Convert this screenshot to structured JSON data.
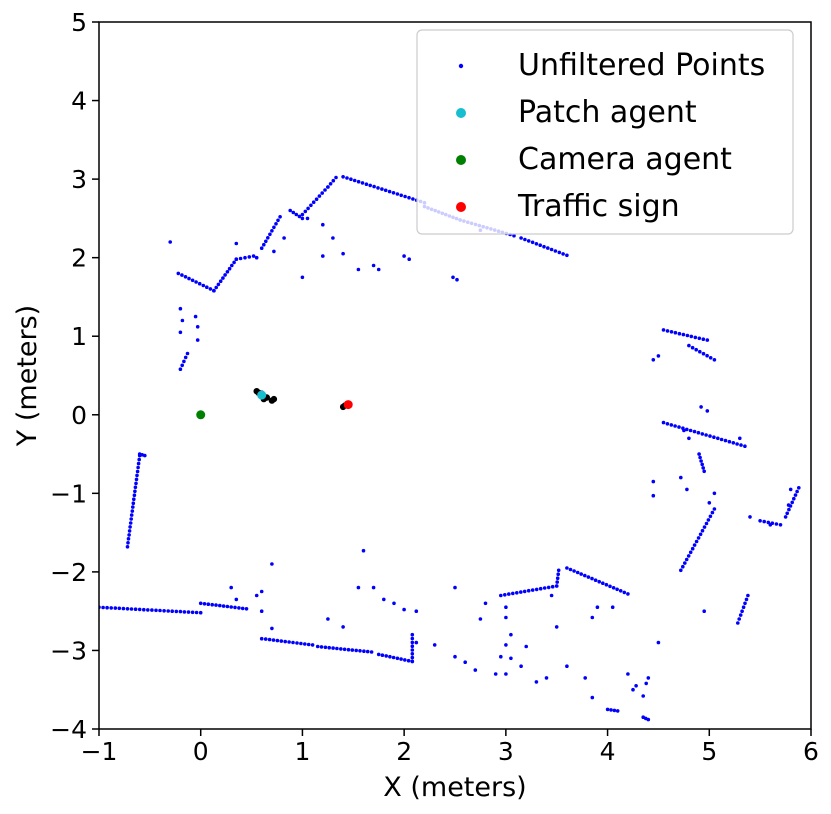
{
  "chart_data": {
    "type": "scatter",
    "xlabel": "X (meters)",
    "ylabel": "Y (meters)",
    "xlim": [
      -1,
      6
    ],
    "ylim": [
      -4,
      5
    ],
    "xticks": [
      -1,
      0,
      1,
      2,
      3,
      4,
      5,
      6
    ],
    "yticks": [
      -4,
      -3,
      -2,
      -1,
      0,
      1,
      2,
      3,
      4,
      5
    ],
    "xtick_labels": [
      "−1",
      "0",
      "1",
      "2",
      "3",
      "4",
      "5",
      "6"
    ],
    "ytick_labels": [
      "−4",
      "−3",
      "−2",
      "−1",
      "0",
      "1",
      "2",
      "3",
      "4",
      "5"
    ],
    "grid": false,
    "legend_position": "top-right",
    "series": [
      {
        "name": "Unfiltered Points",
        "color": "#0000ff",
        "marker_size": "small",
        "segments": [
          [
            [
              -1.0,
              -2.45
            ],
            [
              0.0,
              -2.52
            ]
          ],
          [
            [
              -0.72,
              -1.68
            ],
            [
              -0.6,
              -0.52
            ]
          ],
          [
            [
              -0.55,
              -0.52
            ],
            [
              -0.6,
              -0.5
            ]
          ],
          [
            [
              -0.2,
              0.58
            ],
            [
              -0.13,
              0.78
            ]
          ],
          [
            [
              -0.22,
              1.8
            ],
            [
              0.13,
              1.58
            ]
          ],
          [
            [
              0.13,
              1.58
            ],
            [
              0.35,
              1.98
            ]
          ],
          [
            [
              0.35,
              1.98
            ],
            [
              0.52,
              2.02
            ]
          ],
          [
            [
              0.6,
              2.12
            ],
            [
              0.78,
              2.52
            ]
          ],
          [
            [
              0.88,
              2.6
            ],
            [
              1.0,
              2.5
            ]
          ],
          [
            [
              1.0,
              2.55
            ],
            [
              1.25,
              2.9
            ]
          ],
          [
            [
              1.25,
              2.9
            ],
            [
              1.33,
              3.02
            ]
          ],
          [
            [
              1.4,
              3.03
            ],
            [
              2.2,
              2.7
            ]
          ],
          [
            [
              2.2,
              2.65
            ],
            [
              2.55,
              2.48
            ]
          ],
          [
            [
              2.55,
              2.48
            ],
            [
              3.08,
              2.28
            ]
          ],
          [
            [
              3.15,
              2.25
            ],
            [
              3.6,
              2.03
            ]
          ],
          [
            [
              0.0,
              -2.4
            ],
            [
              0.45,
              -2.47
            ]
          ],
          [
            [
              0.6,
              -2.85
            ],
            [
              1.1,
              -2.93
            ]
          ],
          [
            [
              1.15,
              -2.95
            ],
            [
              1.68,
              -3.02
            ]
          ],
          [
            [
              1.75,
              -3.05
            ],
            [
              2.08,
              -3.14
            ]
          ],
          [
            [
              2.08,
              -3.14
            ],
            [
              2.08,
              -2.8
            ]
          ],
          [
            [
              2.95,
              -2.3
            ],
            [
              3.5,
              -2.18
            ]
          ],
          [
            [
              3.5,
              -2.18
            ],
            [
              3.52,
              -1.98
            ]
          ],
          [
            [
              3.6,
              -1.95
            ],
            [
              4.2,
              -2.28
            ]
          ],
          [
            [
              4.55,
              1.08
            ],
            [
              4.98,
              0.95
            ]
          ],
          [
            [
              4.8,
              0.88
            ],
            [
              5.05,
              0.7
            ]
          ],
          [
            [
              4.55,
              -0.1
            ],
            [
              5.35,
              -0.4
            ]
          ],
          [
            [
              4.72,
              -1.98
            ],
            [
              5.05,
              -1.2
            ]
          ],
          [
            [
              4.9,
              -0.5
            ],
            [
              4.95,
              -0.72
            ]
          ],
          [
            [
              5.28,
              -2.65
            ],
            [
              5.38,
              -2.3
            ]
          ],
          [
            [
              5.75,
              -1.3
            ],
            [
              5.88,
              -0.93
            ]
          ],
          [
            [
              5.5,
              -1.35
            ],
            [
              5.7,
              -1.4
            ]
          ],
          [
            [
              4.35,
              -3.85
            ],
            [
              4.4,
              -3.88
            ]
          ],
          [
            [
              4.0,
              -3.75
            ],
            [
              4.1,
              -3.77
            ]
          ]
        ],
        "points": [
          [
            -0.3,
            2.2
          ],
          [
            -0.2,
            1.35
          ],
          [
            -0.18,
            1.2
          ],
          [
            -0.2,
            1.05
          ],
          [
            -0.05,
            1.25
          ],
          [
            -0.03,
            1.12
          ],
          [
            -0.03,
            0.95
          ],
          [
            0.35,
            2.18
          ],
          [
            0.55,
            2.0
          ],
          [
            0.72,
            2.08
          ],
          [
            0.82,
            2.25
          ],
          [
            1.05,
            2.5
          ],
          [
            1.2,
            2.42
          ],
          [
            1.3,
            2.25
          ],
          [
            1.2,
            2.02
          ],
          [
            1.0,
            1.75
          ],
          [
            1.4,
            2.05
          ],
          [
            1.55,
            1.85
          ],
          [
            1.7,
            1.9
          ],
          [
            1.75,
            1.85
          ],
          [
            2.0,
            2.02
          ],
          [
            2.05,
            1.98
          ],
          [
            2.48,
            1.75
          ],
          [
            2.52,
            1.72
          ],
          [
            2.75,
            2.35
          ],
          [
            0.6,
            -2.5
          ],
          [
            0.55,
            -2.3
          ],
          [
            0.6,
            -2.25
          ],
          [
            0.7,
            -1.9
          ],
          [
            0.7,
            -2.72
          ],
          [
            0.3,
            -2.2
          ],
          [
            0.35,
            -2.35
          ],
          [
            1.25,
            -2.6
          ],
          [
            1.4,
            -2.7
          ],
          [
            1.6,
            -1.73
          ],
          [
            1.55,
            -2.2
          ],
          [
            1.7,
            -2.2
          ],
          [
            1.8,
            -2.35
          ],
          [
            1.9,
            -2.4
          ],
          [
            2.0,
            -2.48
          ],
          [
            2.12,
            -2.5
          ],
          [
            2.12,
            -2.9
          ],
          [
            2.3,
            -2.93
          ],
          [
            2.5,
            -2.2
          ],
          [
            2.5,
            -3.08
          ],
          [
            2.6,
            -3.15
          ],
          [
            2.7,
            -3.25
          ],
          [
            2.9,
            -3.3
          ],
          [
            2.75,
            -2.6
          ],
          [
            2.8,
            -2.4
          ],
          [
            3.0,
            -2.45
          ],
          [
            3.0,
            -2.58
          ],
          [
            3.05,
            -2.8
          ],
          [
            3.0,
            -2.93
          ],
          [
            2.95,
            -3.08
          ],
          [
            3.0,
            -3.3
          ],
          [
            3.05,
            -3.1
          ],
          [
            3.15,
            -3.2
          ],
          [
            3.2,
            -2.95
          ],
          [
            3.3,
            -3.4
          ],
          [
            3.4,
            -3.35
          ],
          [
            3.5,
            -2.7
          ],
          [
            3.45,
            -2.3
          ],
          [
            3.6,
            -3.2
          ],
          [
            3.78,
            -3.35
          ],
          [
            3.85,
            -3.6
          ],
          [
            3.85,
            -2.58
          ],
          [
            3.9,
            -2.45
          ],
          [
            4.05,
            -2.45
          ],
          [
            4.2,
            -3.3
          ],
          [
            4.25,
            -3.5
          ],
          [
            4.28,
            -3.45
          ],
          [
            4.35,
            -3.58
          ],
          [
            4.38,
            -3.42
          ],
          [
            4.4,
            -3.35
          ],
          [
            4.5,
            -2.9
          ],
          [
            4.45,
            -1.03
          ],
          [
            4.45,
            -0.85
          ],
          [
            4.45,
            0.7
          ],
          [
            4.5,
            0.75
          ],
          [
            4.72,
            -0.8
          ],
          [
            4.78,
            -0.95
          ],
          [
            4.75,
            -0.2
          ],
          [
            4.8,
            -0.3
          ],
          [
            4.92,
            0.1
          ],
          [
            4.98,
            0.05
          ],
          [
            5.0,
            -1.12
          ],
          [
            5.05,
            -1.0
          ],
          [
            4.95,
            -2.5
          ],
          [
            5.3,
            -0.3
          ],
          [
            5.4,
            -1.3
          ],
          [
            5.6,
            -1.4
          ],
          [
            5.78,
            -1.15
          ],
          [
            5.8,
            -0.95
          ]
        ]
      },
      {
        "name": "Patch agent",
        "color": "#17becf",
        "marker_size": "large",
        "points": [
          [
            0.6,
            0.25
          ]
        ]
      },
      {
        "name": "Camera agent",
        "color": "#008000",
        "marker_size": "large",
        "points": [
          [
            0.0,
            0.0
          ]
        ]
      },
      {
        "name": "Traffic sign",
        "color": "#ff0000",
        "marker_size": "large",
        "points": [
          [
            1.45,
            0.13
          ]
        ]
      }
    ],
    "unlabeled_points": {
      "color": "#000000",
      "points": [
        [
          0.55,
          0.3
        ],
        [
          0.57,
          0.28
        ],
        [
          0.6,
          0.27
        ],
        [
          0.65,
          0.22
        ],
        [
          0.7,
          0.18
        ],
        [
          0.72,
          0.2
        ],
        [
          0.62,
          0.2
        ],
        [
          1.4,
          0.1
        ],
        [
          1.42,
          0.12
        ]
      ]
    }
  }
}
